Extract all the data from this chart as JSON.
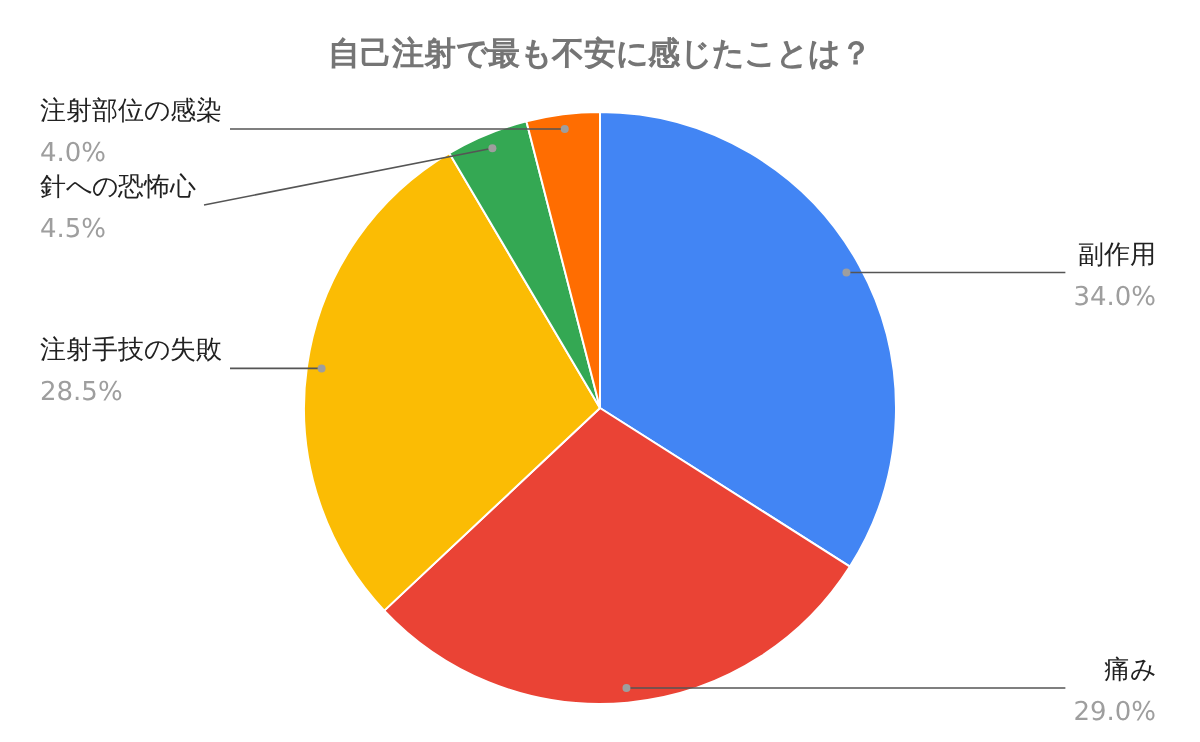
{
  "chart_data": {
    "type": "pie",
    "title": "自己注射で最も不安に感じたことは？",
    "categories": [
      "副作用",
      "痛み",
      "注射手技の失敗",
      "針への恐怖心",
      "注射部位の感染"
    ],
    "values": [
      34.0,
      29.0,
      28.5,
      4.5,
      4.0
    ],
    "value_labels": [
      "34.0%",
      "29.0%",
      "28.5%",
      "4.5%",
      "4.0%"
    ],
    "colors": [
      "#4285f4",
      "#ea4335",
      "#fbbc04",
      "#34a853",
      "#ff6d01"
    ]
  }
}
